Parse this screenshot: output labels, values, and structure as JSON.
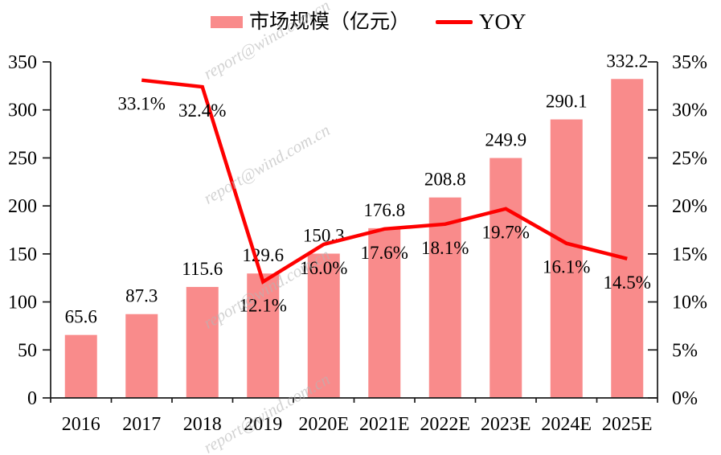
{
  "watermark": "report@wind.com.cn",
  "legend": {
    "bar_label": "市场规模（亿元）",
    "line_label": "YOY"
  },
  "colors": {
    "bar": "#F98B8B",
    "line": "#FE0000",
    "axis": "#1a1a1a",
    "text": "#000000",
    "watermark": "#b5b5b5"
  },
  "chart_data": {
    "type": "bar",
    "title": "",
    "xlabel": "",
    "ylabel": "",
    "grid": false,
    "legend_position": "top",
    "categories": [
      "2016",
      "2017",
      "2018",
      "2019",
      "2020E",
      "2021E",
      "2022E",
      "2023E",
      "2024E",
      "2025E"
    ],
    "series": [
      {
        "name": "市场规模（亿元）",
        "type": "bar",
        "axis": "left",
        "values": [
          65.6,
          87.3,
          115.6,
          129.6,
          150.3,
          176.8,
          208.8,
          249.9,
          290.1,
          332.2
        ],
        "labels": [
          "65.6",
          "87.3",
          "115.6",
          "129.6",
          "150.3",
          "176.8",
          "208.8",
          "249.9",
          "290.1",
          "332.2"
        ]
      },
      {
        "name": "YOY",
        "type": "line",
        "axis": "right",
        "values": [
          null,
          33.1,
          32.4,
          12.1,
          16.0,
          17.6,
          18.1,
          19.7,
          16.1,
          14.5
        ],
        "labels": [
          "",
          "33.1%",
          "32.4%",
          "12.1%",
          "16.0%",
          "17.6%",
          "18.1%",
          "19.7%",
          "16.1%",
          "14.5%"
        ]
      }
    ],
    "left_axis": {
      "min": 0,
      "max": 350,
      "step": 50,
      "ticks": [
        "0",
        "50",
        "100",
        "150",
        "200",
        "250",
        "300",
        "350"
      ]
    },
    "right_axis": {
      "min": 0,
      "max": 35,
      "step": 5,
      "ticks": [
        "0%",
        "5%",
        "10%",
        "15%",
        "20%",
        "25%",
        "30%",
        "35%"
      ]
    }
  }
}
